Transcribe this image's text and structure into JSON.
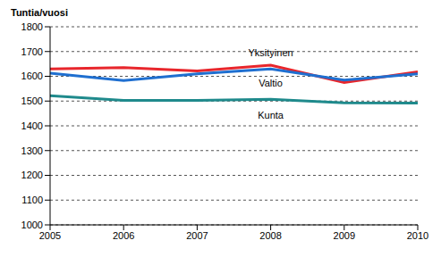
{
  "chart_data": {
    "type": "line",
    "y_label": "Tuntia/vuosi",
    "x": [
      2005,
      2006,
      2007,
      2008,
      2009,
      2010
    ],
    "xlim": [
      2005,
      2010
    ],
    "xticks": [
      2005,
      2006,
      2007,
      2008,
      2009,
      2010
    ],
    "ylim": [
      1000,
      1800
    ],
    "yticks": [
      1000,
      1100,
      1200,
      1300,
      1400,
      1500,
      1600,
      1700,
      1800
    ],
    "grid": true,
    "series": [
      {
        "name": "Yksityinen",
        "color": "#e8262c",
        "values": [
          1630,
          1635,
          1622,
          1645,
          1575,
          1618
        ]
      },
      {
        "name": "Valtio",
        "color": "#1f6fd0",
        "values": [
          1613,
          1583,
          1610,
          1630,
          1585,
          1610
        ]
      },
      {
        "name": "Kunta",
        "color": "#1f8a8c",
        "values": [
          1522,
          1503,
          1503,
          1507,
          1493,
          1492
        ]
      }
    ]
  }
}
